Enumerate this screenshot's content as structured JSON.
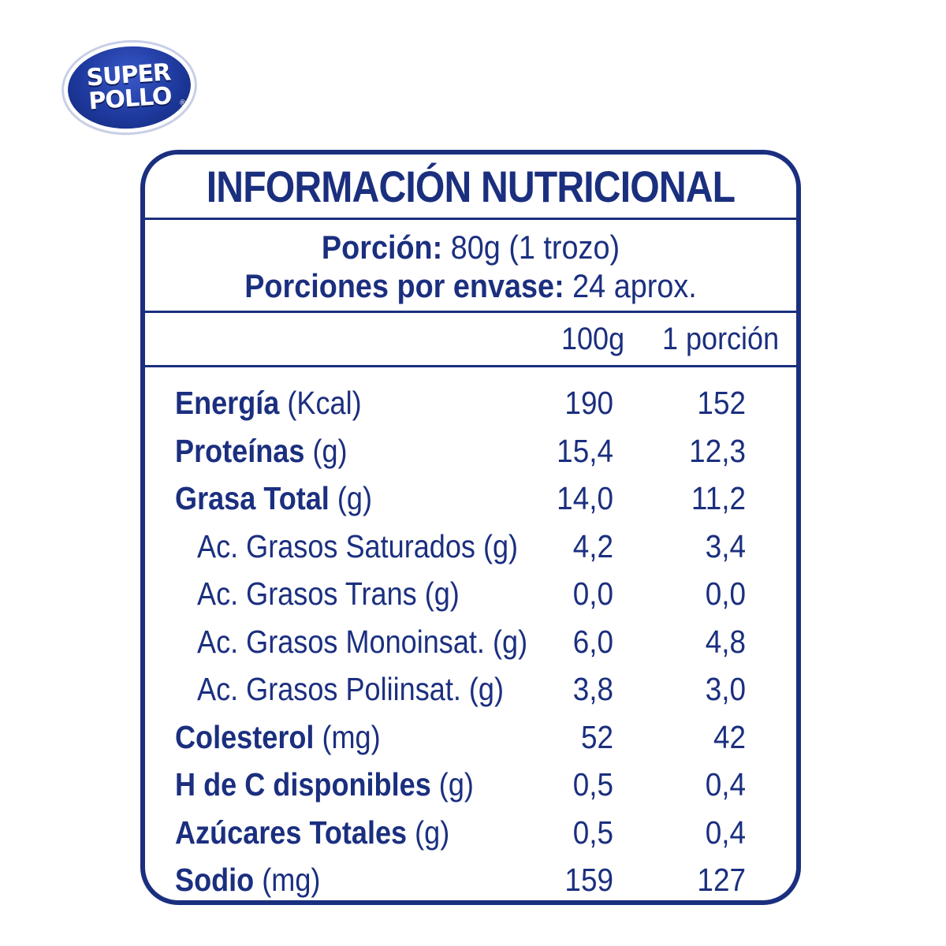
{
  "logo": {
    "line1": "SUPER",
    "line2": "POLLO",
    "registered": "®"
  },
  "panel": {
    "title": "INFORMACIÓN NUTRICIONAL",
    "serving_label": "Porción:",
    "serving_value": "80g (1 trozo)",
    "servings_label": "Porciones por envase:",
    "servings_value": "24 aprox.",
    "col_100g": "100g",
    "col_portion": "1 porción"
  },
  "nutrients": [
    {
      "name": "Energía",
      "unit": "(Kcal)",
      "per100": "190",
      "perPortion": "152",
      "sub": false
    },
    {
      "name": "Proteínas",
      "unit": "(g)",
      "per100": "15,4",
      "perPortion": "12,3",
      "sub": false
    },
    {
      "name": "Grasa Total",
      "unit": "(g)",
      "per100": "14,0",
      "perPortion": "11,2",
      "sub": false
    },
    {
      "name": "Ac. Grasos Saturados (g)",
      "unit": "",
      "per100": "4,2",
      "perPortion": "3,4",
      "sub": true
    },
    {
      "name": "Ac. Grasos Trans (g)",
      "unit": "",
      "per100": "0,0",
      "perPortion": "0,0",
      "sub": true
    },
    {
      "name": "Ac. Grasos Monoinsat. (g)",
      "unit": "",
      "per100": "6,0",
      "perPortion": "4,8",
      "sub": true
    },
    {
      "name": "Ac. Grasos Poliinsat. (g)",
      "unit": "",
      "per100": "3,8",
      "perPortion": "3,0",
      "sub": true
    },
    {
      "name": "Colesterol",
      "unit": "(mg)",
      "per100": "52",
      "perPortion": "42",
      "sub": false
    },
    {
      "name": "H de C disponibles",
      "unit": "(g)",
      "per100": "0,5",
      "perPortion": "0,4",
      "sub": false
    },
    {
      "name": "Azúcares Totales",
      "unit": "(g)",
      "per100": "0,5",
      "perPortion": "0,4",
      "sub": false
    },
    {
      "name": "Sodio",
      "unit": "(mg)",
      "per100": "159",
      "perPortion": "127",
      "sub": false
    }
  ],
  "colors": {
    "brand_blue": "#1b2f7f",
    "logo_blue": "#1e3a9e"
  }
}
